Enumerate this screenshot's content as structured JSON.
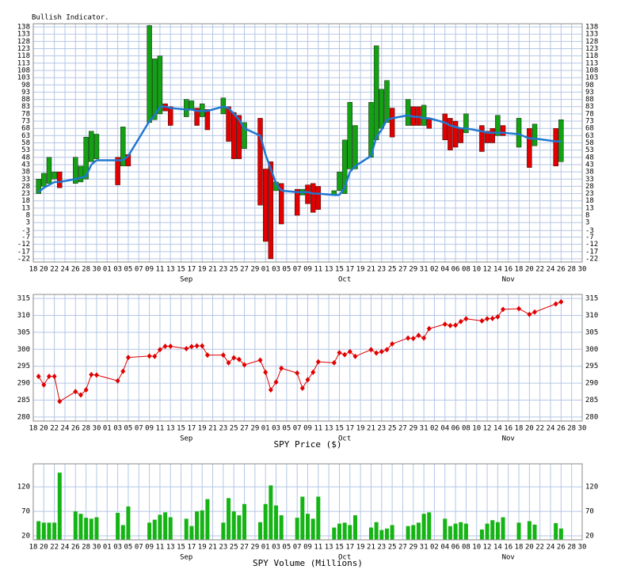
{
  "chart_data": [
    {
      "type": "candlestick",
      "title": "Bullish Indicator.",
      "categories": [
        "18",
        null,
        "20",
        null,
        "22",
        null,
        "24",
        null,
        "26",
        null,
        "28",
        null,
        "30",
        null,
        "01",
        null,
        "03",
        null,
        "05",
        null,
        "07",
        null,
        "09",
        null,
        "11",
        null,
        "13",
        null,
        "15",
        null,
        "17",
        null,
        "19",
        null,
        "21",
        null,
        "23",
        null,
        "25",
        null,
        "27",
        null,
        "29",
        null,
        "01",
        null,
        "03",
        null,
        "05",
        null,
        "07",
        null,
        "09",
        null,
        "11",
        null,
        "13",
        null,
        "15",
        null,
        "17",
        null,
        "19",
        null,
        "21",
        null,
        "23",
        null,
        "25",
        null,
        "27",
        null,
        "29",
        null,
        "31",
        null,
        "02",
        null,
        "04",
        null,
        "06",
        null,
        "08",
        null,
        "10",
        null,
        "12",
        null,
        "14",
        null,
        "16",
        null,
        "18",
        null,
        "20",
        null,
        "22",
        null,
        "24",
        null,
        "26",
        null,
        "28",
        null,
        "30"
      ],
      "month_categories": [
        null,
        null,
        null,
        null,
        null,
        null,
        null,
        null,
        null,
        null,
        null,
        null,
        null,
        null,
        null,
        null,
        null,
        null,
        null,
        null,
        null,
        null,
        null,
        null,
        null,
        null,
        null,
        null,
        null,
        "Sep",
        null,
        null,
        null,
        null,
        null,
        null,
        null,
        null,
        null,
        null,
        null,
        null,
        null,
        null,
        null,
        null,
        null,
        null,
        null,
        null,
        null,
        null,
        null,
        null,
        null,
        null,
        null,
        null,
        null,
        "Oct",
        null,
        null,
        null,
        null,
        null,
        null,
        null,
        null,
        null,
        null,
        null,
        null,
        null,
        null,
        null,
        null,
        null,
        null,
        null,
        null,
        null,
        null,
        null,
        null,
        null,
        null,
        null,
        null,
        null,
        null,
        "Nov",
        null,
        null,
        null,
        null,
        null,
        null,
        null,
        null,
        null,
        null,
        null,
        null,
        null,
        null
      ],
      "open": [
        null,
        23,
        28,
        30,
        33,
        38,
        null,
        null,
        30,
        31,
        33,
        45,
        47,
        null,
        null,
        null,
        48,
        42,
        50,
        null,
        null,
        null,
        72,
        74,
        78,
        85,
        83,
        null,
        null,
        76,
        81,
        82,
        76,
        81,
        null,
        null,
        78,
        83,
        79,
        77,
        54,
        null,
        null,
        75,
        40,
        45,
        25,
        30,
        null,
        null,
        26,
        22,
        29,
        30,
        28,
        null,
        null,
        22,
        25,
        23,
        40,
        40,
        null,
        null,
        48,
        60,
        68,
        72,
        82,
        null,
        null,
        70,
        83,
        83,
        70,
        75,
        null,
        null,
        78,
        75,
        73,
        68,
        65,
        null,
        null,
        70,
        66,
        68,
        63,
        70,
        null,
        null,
        55,
        null,
        68,
        56,
        null,
        null,
        null,
        68,
        45,
        null,
        null,
        null,
        null
      ],
      "close": [
        null,
        33,
        37,
        48,
        38,
        27,
        null,
        null,
        48,
        42,
        62,
        66,
        64,
        null,
        null,
        null,
        29,
        69,
        42,
        null,
        null,
        null,
        139,
        116,
        118,
        80,
        70,
        null,
        null,
        88,
        87,
        70,
        85,
        67,
        null,
        null,
        89,
        59,
        47,
        47,
        72,
        null,
        null,
        15,
        -10,
        -22,
        31,
        2,
        null,
        null,
        8,
        26,
        16,
        10,
        12,
        null,
        null,
        25,
        38,
        60,
        86,
        70,
        null,
        null,
        86,
        125,
        95,
        101,
        62,
        null,
        null,
        88,
        70,
        70,
        84,
        68,
        null,
        null,
        60,
        53,
        55,
        58,
        78,
        null,
        null,
        52,
        58,
        58,
        77,
        63,
        null,
        null,
        75,
        null,
        41,
        71,
        null,
        null,
        null,
        42,
        74,
        null,
        null,
        null,
        null
      ],
      "average": [
        null,
        24,
        27,
        29,
        31,
        31,
        null,
        null,
        33,
        34,
        35,
        43,
        46,
        null,
        null,
        null,
        46,
        46,
        49,
        null,
        null,
        null,
        73,
        77,
        83,
        83,
        82,
        null,
        null,
        81,
        81,
        80,
        80,
        80,
        null,
        null,
        83,
        82,
        78,
        74,
        68,
        null,
        null,
        63,
        50,
        40,
        30,
        25,
        null,
        null,
        24,
        24,
        24,
        23,
        23,
        null,
        null,
        22,
        22,
        27,
        38,
        42,
        null,
        null,
        49,
        62,
        67,
        74,
        75,
        null,
        null,
        77,
        76,
        76,
        75,
        75,
        null,
        null,
        72,
        70,
        69,
        68,
        68,
        null,
        null,
        66,
        65,
        65,
        65,
        65,
        null,
        null,
        64,
        null,
        61,
        61,
        null,
        null,
        null,
        59,
        59,
        null,
        null,
        null,
        null
      ],
      "up_color": "#14a014",
      "down_color": "#e00000",
      "line_color": "#1f78d1",
      "ylim": [
        -24.2,
        140.2
      ],
      "yticks": [
        138,
        133,
        128,
        123,
        118,
        113,
        108,
        103,
        98,
        93,
        88,
        83,
        78,
        73,
        68,
        63,
        58,
        53,
        48,
        43,
        38,
        33,
        28,
        23,
        18,
        13,
        8,
        3,
        {
          "value": -2.5,
          "label": "-3"
        },
        -7,
        -12,
        -17,
        -22
      ],
      "grid": true
    },
    {
      "type": "line",
      "xlabel": "SPY Price ($)",
      "categories": [
        "18",
        null,
        "20",
        null,
        "22",
        null,
        "24",
        null,
        "26",
        null,
        "28",
        null,
        "30",
        null,
        "01",
        null,
        "03",
        null,
        "05",
        null,
        "07",
        null,
        "09",
        null,
        "11",
        null,
        "13",
        null,
        "15",
        null,
        "17",
        null,
        "19",
        null,
        "21",
        null,
        "23",
        null,
        "25",
        null,
        "27",
        null,
        "29",
        null,
        "01",
        null,
        "03",
        null,
        "05",
        null,
        "07",
        null,
        "09",
        null,
        "11",
        null,
        "13",
        null,
        "15",
        null,
        "17",
        null,
        "19",
        null,
        "21",
        null,
        "23",
        null,
        "25",
        null,
        "27",
        null,
        "29",
        null,
        "31",
        null,
        "02",
        null,
        "04",
        null,
        "06",
        null,
        "08",
        null,
        "10",
        null,
        "12",
        null,
        "14",
        null,
        "16",
        null,
        "18",
        null,
        "20",
        null,
        "22",
        null,
        "24",
        null,
        "26",
        null,
        "28",
        null,
        "30"
      ],
      "month_categories": [
        null,
        null,
        null,
        null,
        null,
        null,
        null,
        null,
        null,
        null,
        null,
        null,
        null,
        null,
        null,
        null,
        null,
        null,
        null,
        null,
        null,
        null,
        null,
        null,
        null,
        null,
        null,
        null,
        null,
        "Sep",
        null,
        null,
        null,
        null,
        null,
        null,
        null,
        null,
        null,
        null,
        null,
        null,
        null,
        null,
        null,
        null,
        null,
        null,
        null,
        null,
        null,
        null,
        null,
        null,
        null,
        null,
        null,
        null,
        null,
        "Oct",
        null,
        null,
        null,
        null,
        null,
        null,
        null,
        null,
        null,
        null,
        null,
        null,
        null,
        null,
        null,
        null,
        null,
        null,
        null,
        null,
        null,
        null,
        null,
        null,
        null,
        null,
        null,
        null,
        null,
        null,
        "Nov",
        null,
        null,
        null,
        null,
        null,
        null,
        null,
        null,
        null,
        null,
        null,
        null,
        null,
        null
      ],
      "values": [
        null,
        292,
        289.5,
        292,
        292,
        284.6,
        null,
        null,
        287.5,
        286.5,
        288,
        292.5,
        292.4,
        null,
        null,
        null,
        290.7,
        293.5,
        297.6,
        null,
        null,
        null,
        298,
        297.9,
        299.9,
        300.9,
        300.9,
        null,
        null,
        300.2,
        300.8,
        301,
        301,
        298.3,
        null,
        null,
        298.3,
        296,
        297.5,
        297,
        295.4,
        null,
        null,
        296.8,
        293.2,
        288,
        290.3,
        294.4,
        null,
        null,
        293,
        288.5,
        291,
        293.2,
        296.3,
        null,
        null,
        296,
        299,
        298.4,
        299.3,
        297.9,
        null,
        null,
        299.9,
        298.9,
        299.3,
        299.9,
        301.6,
        null,
        null,
        303.3,
        303.2,
        304.1,
        303.3,
        306.1,
        null,
        null,
        307.4,
        307,
        307.1,
        308.2,
        309,
        null,
        null,
        308.4,
        309,
        309.1,
        309.6,
        311.8,
        null,
        null,
        312,
        null,
        310.3,
        311,
        null,
        null,
        null,
        313.4,
        314,
        null,
        null,
        null,
        null
      ],
      "color": "#e00000",
      "ylim": [
        278.8,
        316.2
      ],
      "yticks": [
        315,
        310,
        305,
        300,
        295,
        290,
        285,
        280
      ],
      "grid": true
    },
    {
      "type": "bar",
      "xlabel": "SPY Volume (Millions)",
      "categories": [
        "18",
        null,
        "20",
        null,
        "22",
        null,
        "24",
        null,
        "26",
        null,
        "28",
        null,
        "30",
        null,
        "01",
        null,
        "03",
        null,
        "05",
        null,
        "07",
        null,
        "09",
        null,
        "11",
        null,
        "13",
        null,
        "15",
        null,
        "17",
        null,
        "19",
        null,
        "21",
        null,
        "23",
        null,
        "25",
        null,
        "27",
        null,
        "29",
        null,
        "01",
        null,
        "03",
        null,
        "05",
        null,
        "07",
        null,
        "09",
        null,
        "11",
        null,
        "13",
        null,
        "15",
        null,
        "17",
        null,
        "19",
        null,
        "21",
        null,
        "23",
        null,
        "25",
        null,
        "27",
        null,
        "29",
        null,
        "31",
        null,
        "02",
        null,
        "04",
        null,
        "06",
        null,
        "08",
        null,
        "10",
        null,
        "12",
        null,
        "14",
        null,
        "16",
        null,
        "18",
        null,
        "20",
        null,
        "22",
        null,
        "24",
        null,
        "26",
        null,
        "28",
        null,
        "30"
      ],
      "month_categories": [
        null,
        null,
        null,
        null,
        null,
        null,
        null,
        null,
        null,
        null,
        null,
        null,
        null,
        null,
        null,
        null,
        null,
        null,
        null,
        null,
        null,
        null,
        null,
        null,
        null,
        null,
        null,
        null,
        null,
        "Sep",
        null,
        null,
        null,
        null,
        null,
        null,
        null,
        null,
        null,
        null,
        null,
        null,
        null,
        null,
        null,
        null,
        null,
        null,
        null,
        null,
        null,
        null,
        null,
        null,
        null,
        null,
        null,
        null,
        null,
        "Oct",
        null,
        null,
        null,
        null,
        null,
        null,
        null,
        null,
        null,
        null,
        null,
        null,
        null,
        null,
        null,
        null,
        null,
        null,
        null,
        null,
        null,
        null,
        null,
        null,
        null,
        null,
        null,
        null,
        null,
        null,
        "Nov",
        null,
        null,
        null,
        null,
        null,
        null,
        null,
        null,
        null,
        null,
        null,
        null,
        null,
        null
      ],
      "values": [
        null,
        50,
        47,
        47,
        47,
        149,
        null,
        null,
        70,
        65,
        57,
        55,
        58,
        null,
        null,
        null,
        67,
        42,
        80,
        null,
        null,
        null,
        47,
        53,
        63,
        68,
        58,
        null,
        null,
        55,
        40,
        70,
        72,
        95,
        null,
        null,
        47,
        97,
        70,
        62,
        85,
        null,
        null,
        48,
        85,
        123,
        82,
        62,
        null,
        null,
        57,
        100,
        65,
        55,
        100,
        null,
        null,
        37,
        45,
        47,
        42,
        62,
        null,
        null,
        37,
        48,
        32,
        35,
        42,
        null,
        null,
        40,
        42,
        47,
        65,
        68,
        null,
        null,
        55,
        40,
        45,
        48,
        45,
        null,
        null,
        33,
        45,
        52,
        48,
        58,
        null,
        null,
        47,
        null,
        50,
        43,
        null,
        null,
        null,
        46,
        35,
        null,
        null,
        null,
        null
      ],
      "color": "#14b414",
      "ylim": [
        12,
        167
      ],
      "yticks": [
        120,
        70,
        20
      ],
      "grid": true
    }
  ]
}
